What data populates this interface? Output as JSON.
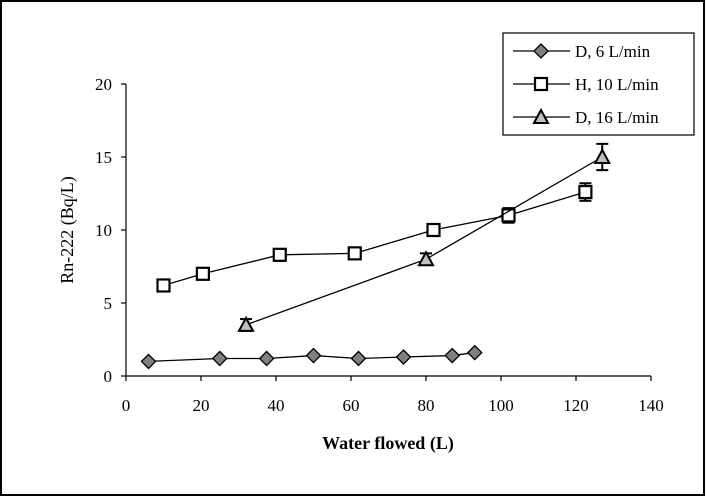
{
  "chart_data": {
    "type": "scatter",
    "title": "",
    "xlabel": "Water flowed (L)",
    "ylabel": "Rn-222 (Bq/L)",
    "xlim": [
      0,
      140
    ],
    "ylim": [
      0,
      20
    ],
    "x_ticks": [
      "0",
      "20",
      "40",
      "60",
      "80",
      "100",
      "120",
      "140"
    ],
    "y_ticks": [
      "0",
      "5",
      "10",
      "15",
      "20"
    ],
    "grid": false,
    "legend_position": "top-right",
    "series": [
      {
        "name": "D, 6 L/min",
        "marker": "diamond",
        "fill": "#808080",
        "x": [
          6,
          25,
          37.5,
          50,
          62,
          74,
          87,
          93
        ],
        "y": [
          1.0,
          1.2,
          1.2,
          1.4,
          1.2,
          1.3,
          1.4,
          1.6
        ]
      },
      {
        "name": "H, 10 L/min",
        "marker": "square",
        "fill": "#ffffff",
        "x": [
          10,
          20.5,
          41,
          61,
          82,
          102,
          122.5
        ],
        "y": [
          6.2,
          7.0,
          8.3,
          8.4,
          10.0,
          11.0,
          12.6
        ],
        "err": [
          0,
          0,
          0,
          0,
          0.3,
          0.5,
          0.6
        ]
      },
      {
        "name": "D, 16 L/min",
        "marker": "triangle",
        "fill": "#c0c0c0",
        "x": [
          32,
          80,
          127
        ],
        "y": [
          3.5,
          8.0,
          15.0
        ],
        "err": [
          0.4,
          0.4,
          0.9
        ]
      }
    ]
  }
}
